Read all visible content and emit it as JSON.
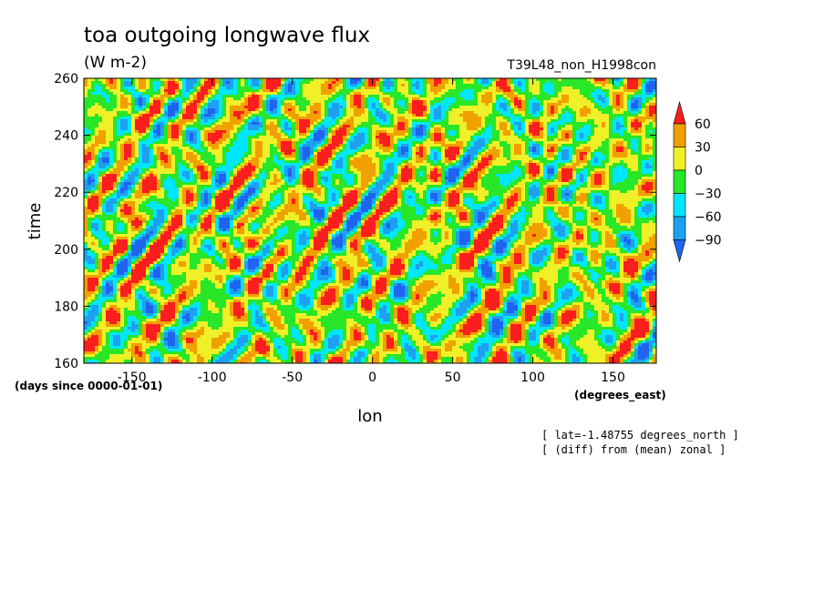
{
  "chart_data": {
    "type": "heatmap",
    "title": "toa outgoing longwave flux",
    "units": "(W m-2)",
    "experiment": "T39L48_non_H1998con",
    "xlabel": "lon",
    "xunit": "(degrees_east)",
    "ylabel": "time",
    "yunit": "(days since 0000-01-01)",
    "xlim": [
      -180,
      177
    ],
    "ylim": [
      160,
      260
    ],
    "x_ticks": [
      -150,
      -100,
      -50,
      0,
      50,
      100,
      150
    ],
    "y_ticks": [
      160,
      180,
      200,
      220,
      240,
      260
    ],
    "colorbar": {
      "levels": [
        -90,
        -60,
        -30,
        0,
        30,
        60
      ],
      "tick_labels": [
        "60",
        "30",
        "0",
        "-30",
        "-60",
        "-90"
      ],
      "colors": [
        "#1e64f0",
        "#1ea0f0",
        "#00e6ff",
        "#28e628",
        "#f0f028",
        "#f0a000",
        "#fa1e1e"
      ],
      "extend": "both"
    },
    "annotations": [
      "[ lat=-1.48755 degrees_north ]",
      "[ (diff) from (mean) zonal ]"
    ]
  }
}
